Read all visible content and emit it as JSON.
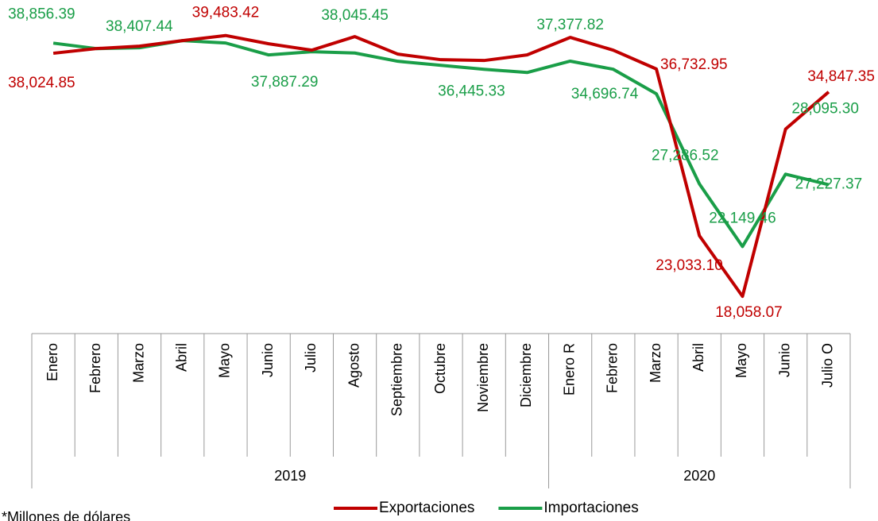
{
  "chart_data": {
    "type": "line",
    "categories": [
      "Enero",
      "Febrero",
      "Marzo",
      "Abril",
      "Mayo",
      "Junio",
      "Julio",
      "Agosto",
      "Septiembre",
      "Octubre",
      "Noviembre",
      "Diciembre",
      "Enero R",
      "Febrero",
      "Marzo",
      "Abril",
      "Mayo",
      "Junio",
      "Julio O"
    ],
    "groups": [
      {
        "name": "2019",
        "count": 12
      },
      {
        "name": "2020",
        "count": 7
      }
    ],
    "ylim": [
      15000,
      42400
    ],
    "series": [
      {
        "name": "Exportaciones",
        "color": "#c00000",
        "values": [
          38024.85,
          38411,
          38608,
          39066,
          39483.42,
          38804,
          38280,
          39393,
          37953,
          37495,
          37430,
          37888,
          39328,
          38280,
          36732.95,
          23033.1,
          18058.07,
          31801,
          34847.35
        ],
        "value_labels": [
          "38,024.85",
          null,
          null,
          null,
          "39,483.42",
          null,
          null,
          null,
          null,
          null,
          null,
          null,
          null,
          null,
          "36,732.95",
          "23,033.10",
          "18,058.07",
          null,
          "34,847.35"
        ]
      },
      {
        "name": "Importaciones",
        "color": "#1a9e48",
        "values": [
          38856.39,
          38407.44,
          38476,
          39066,
          38869,
          37887.29,
          38149,
          38045.45,
          37365,
          37037,
          36710,
          36445.33,
          37377.82,
          36710,
          34696.74,
          27286.52,
          22149.46,
          28095.3,
          27227.37
        ],
        "value_labels": [
          "38,856.39",
          "38,407.44",
          null,
          null,
          null,
          "37,887.29",
          null,
          "38,045.45",
          null,
          null,
          null,
          "36,445.33",
          "37,377.82",
          null,
          "34,696.74",
          "27,286.52",
          "22,149.46",
          "28,095.30",
          "27,227.37"
        ]
      }
    ],
    "legend": "bottom",
    "note": "*Millones de dólares"
  }
}
